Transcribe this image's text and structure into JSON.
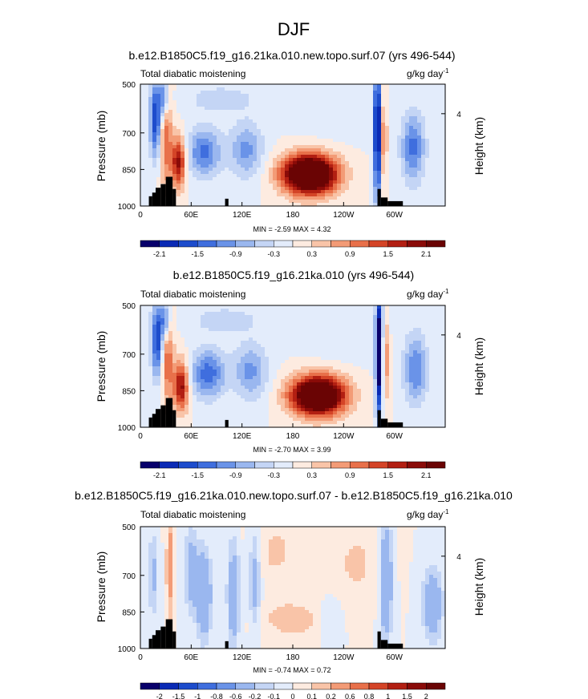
{
  "figure_title": "DJF",
  "colors": {
    "palette_full": [
      "#08006b",
      "#0a2ab5",
      "#1d4ccc",
      "#3f6ede",
      "#6a93e8",
      "#9ab7ef",
      "#c4d5f5",
      "#e3ecfb",
      "#fdebe0",
      "#f9c4a8",
      "#f39b76",
      "#e8704a",
      "#d44427",
      "#b21f12",
      "#8a0b08",
      "#6a0404"
    ],
    "land": "#000000"
  },
  "chart_data": [
    {
      "type": "contour",
      "title": "b.e12.B1850C5.f19_g16.21ka.010.new.topo.surf.07 (yrs 496-544)",
      "left_label": "Total diabatic moistening",
      "units_main": "g/kg day",
      "units_sup": "-1",
      "ylabel": "Pressure (mb)",
      "ylabel_right": "Height (km)",
      "yticks": [
        "500",
        "700",
        "850",
        "1000"
      ],
      "ytick_values": [
        500,
        700,
        850,
        1000
      ],
      "right_ticks": [
        "4"
      ],
      "right_tick_values": [
        4
      ],
      "xticks": [
        "0",
        "60E",
        "120E",
        "180",
        "120W",
        "60W"
      ],
      "xtick_values": [
        0,
        60,
        120,
        180,
        240,
        300
      ],
      "xlim": [
        0,
        360
      ],
      "ylim": [
        500,
        1000
      ],
      "min_max": "MIN = -2.59  MAX =  4.32",
      "min": -2.59,
      "max": 4.32,
      "colorbar_labels": [
        "-2.1",
        "-1.5",
        "-0.9",
        "-0.3",
        "0.3",
        "0.9",
        "1.5",
        "2.1"
      ],
      "levels": [
        -2.4,
        -2.1,
        -1.8,
        -1.5,
        -1.2,
        -0.9,
        -0.6,
        -0.3,
        0,
        0.3,
        0.6,
        0.9,
        1.2,
        1.5,
        1.8,
        2.1,
        2.4
      ],
      "features": [
        {
          "lon": 200,
          "p": 870,
          "value": 4.0,
          "wlon": 22,
          "wp": 55
        },
        {
          "lon": 45,
          "p": 820,
          "value": 2.0,
          "wlon": 6,
          "wp": 70
        },
        {
          "lon": 30,
          "p": 700,
          "value": 1.2,
          "wlon": 5,
          "wp": 150
        },
        {
          "lon": 18,
          "p": 640,
          "value": -1.8,
          "wlon": 5,
          "wp": 110
        },
        {
          "lon": 28,
          "p": 560,
          "value": -1.5,
          "wlon": 4,
          "wp": 60
        },
        {
          "lon": 75,
          "p": 780,
          "value": -1.3,
          "wlon": 14,
          "wp": 70
        },
        {
          "lon": 125,
          "p": 770,
          "value": -1.0,
          "wlon": 14,
          "wp": 80
        },
        {
          "lon": 95,
          "p": 560,
          "value": -0.5,
          "wlon": 30,
          "wp": 40
        },
        {
          "lon": 280,
          "p": 700,
          "value": -2.6,
          "wlon": 3,
          "wp": 200
        },
        {
          "lon": 287,
          "p": 720,
          "value": 1.0,
          "wlon": 3,
          "wp": 120
        },
        {
          "lon": 322,
          "p": 760,
          "value": -1.3,
          "wlon": 10,
          "wp": 100
        },
        {
          "lon": 230,
          "p": 600,
          "value": -0.3,
          "wlon": 30,
          "wp": 80
        }
      ]
    },
    {
      "type": "contour",
      "title": "b.e12.B1850C5.f19_g16.21ka.010 (yrs 496-544)",
      "left_label": "Total diabatic moistening",
      "units_main": "g/kg day",
      "units_sup": "-1",
      "ylabel": "Pressure (mb)",
      "ylabel_right": "Height (km)",
      "yticks": [
        "500",
        "700",
        "850",
        "1000"
      ],
      "ytick_values": [
        500,
        700,
        850,
        1000
      ],
      "right_ticks": [
        "4"
      ],
      "right_tick_values": [
        4
      ],
      "xticks": [
        "0",
        "60E",
        "120E",
        "180",
        "120W",
        "60W"
      ],
      "xtick_values": [
        0,
        60,
        120,
        180,
        240,
        300
      ],
      "xlim": [
        0,
        360
      ],
      "ylim": [
        500,
        1000
      ],
      "min_max": "MIN = -2.70  MAX =  3.99",
      "min": -2.7,
      "max": 3.99,
      "colorbar_labels": [
        "-2.1",
        "-1.5",
        "-0.9",
        "-0.3",
        "0.3",
        "0.9",
        "1.5",
        "2.1"
      ],
      "levels": [
        -2.4,
        -2.1,
        -1.8,
        -1.5,
        -1.2,
        -0.9,
        -0.6,
        -0.3,
        0,
        0.3,
        0.6,
        0.9,
        1.2,
        1.5,
        1.8,
        2.1,
        2.4
      ],
      "features": [
        {
          "lon": 210,
          "p": 870,
          "value": 3.8,
          "wlon": 22,
          "wp": 55
        },
        {
          "lon": 48,
          "p": 830,
          "value": 2.0,
          "wlon": 6,
          "wp": 70
        },
        {
          "lon": 32,
          "p": 700,
          "value": 1.2,
          "wlon": 5,
          "wp": 150
        },
        {
          "lon": 20,
          "p": 640,
          "value": -1.8,
          "wlon": 5,
          "wp": 110
        },
        {
          "lon": 30,
          "p": 560,
          "value": -1.5,
          "wlon": 4,
          "wp": 60
        },
        {
          "lon": 80,
          "p": 780,
          "value": -1.4,
          "wlon": 14,
          "wp": 70
        },
        {
          "lon": 130,
          "p": 770,
          "value": -1.0,
          "wlon": 14,
          "wp": 80
        },
        {
          "lon": 100,
          "p": 560,
          "value": -0.5,
          "wlon": 30,
          "wp": 40
        },
        {
          "lon": 282,
          "p": 700,
          "value": -2.7,
          "wlon": 3,
          "wp": 200
        },
        {
          "lon": 289,
          "p": 720,
          "value": 1.0,
          "wlon": 3,
          "wp": 120
        },
        {
          "lon": 325,
          "p": 760,
          "value": -1.2,
          "wlon": 10,
          "wp": 100
        },
        {
          "lon": 235,
          "p": 600,
          "value": -0.3,
          "wlon": 30,
          "wp": 80
        }
      ]
    },
    {
      "type": "contour",
      "title": "b.e12.B1850C5.f19_g16.21ka.010.new.topo.surf.07 - b.e12.B1850C5.f19_g16.21ka.010",
      "left_label": "Total diabatic moistening",
      "units_main": "g/kg day",
      "units_sup": "-1",
      "ylabel": "Pressure (mb)",
      "ylabel_right": "Height (km)",
      "yticks": [
        "500",
        "700",
        "850",
        "1000"
      ],
      "ytick_values": [
        500,
        700,
        850,
        1000
      ],
      "right_ticks": [
        "4"
      ],
      "right_tick_values": [
        4
      ],
      "xticks": [
        "0",
        "60E",
        "120E",
        "180",
        "120W",
        "60W"
      ],
      "xtick_values": [
        0,
        60,
        120,
        180,
        240,
        300
      ],
      "xlim": [
        0,
        360
      ],
      "ylim": [
        500,
        1000
      ],
      "min_max": "MIN = -0.74  MAX =  0.72",
      "min": -0.74,
      "max": 0.72,
      "colorbar_labels": [
        "-2",
        "-1.5",
        "-1",
        "-0.8",
        "-0.6",
        "-0.2",
        "-0.1",
        "0",
        "0.1",
        "0.2",
        "0.6",
        "0.8",
        "1",
        "1.5",
        "2"
      ],
      "levels": [
        -2.5,
        -2,
        -1.5,
        -1,
        -0.8,
        -0.6,
        -0.2,
        -0.1,
        0,
        0.1,
        0.2,
        0.6,
        0.8,
        1,
        1.5,
        2,
        2.5
      ],
      "features": [
        {
          "lon": 180,
          "p": 880,
          "value": 0.15,
          "wlon": 30,
          "wp": 60
        },
        {
          "lon": 75,
          "p": 780,
          "value": -0.5,
          "wlon": 6,
          "wp": 120
        },
        {
          "lon": 60,
          "p": 680,
          "value": -0.3,
          "wlon": 6,
          "wp": 120
        },
        {
          "lon": 110,
          "p": 780,
          "value": -0.4,
          "wlon": 5,
          "wp": 150
        },
        {
          "lon": 135,
          "p": 720,
          "value": -0.3,
          "wlon": 5,
          "wp": 150
        },
        {
          "lon": 160,
          "p": 600,
          "value": 0.12,
          "wlon": 20,
          "wp": 100
        },
        {
          "lon": 290,
          "p": 720,
          "value": -0.5,
          "wlon": 5,
          "wp": 160
        },
        {
          "lon": 255,
          "p": 650,
          "value": 0.12,
          "wlon": 20,
          "wp": 120
        },
        {
          "lon": 345,
          "p": 820,
          "value": -0.4,
          "wlon": 8,
          "wp": 100
        },
        {
          "lon": 35,
          "p": 660,
          "value": 0.3,
          "wlon": 3,
          "wp": 150
        },
        {
          "lon": 15,
          "p": 700,
          "value": -0.25,
          "wlon": 4,
          "wp": 120
        },
        {
          "lon": 225,
          "p": 880,
          "value": -0.15,
          "wlon": 10,
          "wp": 60
        }
      ]
    }
  ]
}
